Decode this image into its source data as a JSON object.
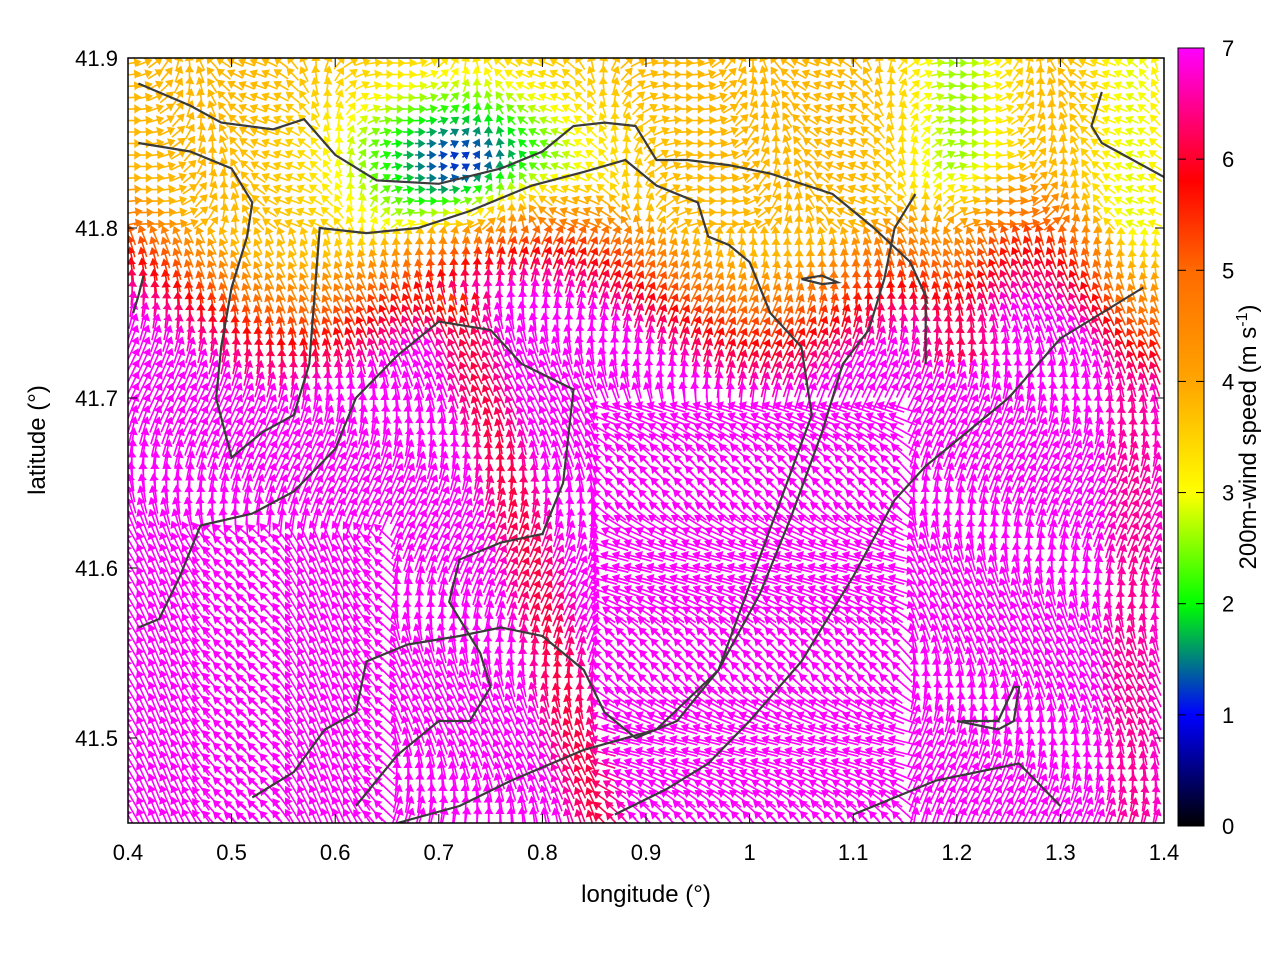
{
  "chart_data": {
    "type": "vector-field",
    "xlabel": "longitude (°)",
    "ylabel": "latitude (°)",
    "xlim": [
      0.4,
      1.4
    ],
    "ylim": [
      41.45,
      41.9
    ],
    "xticks": [
      "0.4",
      "0.5",
      "0.6",
      "0.7",
      "0.8",
      "0.9",
      "1",
      "1.1",
      "1.2",
      "1.3",
      "1.4"
    ],
    "yticks": [
      "41.5",
      "41.6",
      "41.7",
      "41.8",
      "41.9"
    ],
    "colorbar": {
      "label_main": "200m-wind speed (m s",
      "label_sup": "-1",
      "label_end": ")",
      "range": [
        0,
        7
      ],
      "ticks": [
        "0",
        "1",
        "2",
        "3",
        "4",
        "5",
        "6",
        "7"
      ],
      "palette": [
        {
          "v": 0.0,
          "color": "#000000"
        },
        {
          "v": 1.0,
          "color": "#0000ff"
        },
        {
          "v": 2.0,
          "color": "#00ff00"
        },
        {
          "v": 3.0,
          "color": "#ffff00"
        },
        {
          "v": 4.0,
          "color": "#ffa500"
        },
        {
          "v": 5.0,
          "color": "#ff6a00"
        },
        {
          "v": 5.8,
          "color": "#ff0000"
        },
        {
          "v": 7.0,
          "color": "#ff00ff"
        }
      ]
    },
    "grid": false,
    "contours": [
      [
        [
          0.41,
          41.885
        ],
        [
          0.46,
          41.872
        ],
        [
          0.49,
          41.862
        ],
        [
          0.54,
          41.858
        ],
        [
          0.57,
          41.864
        ],
        [
          0.6,
          41.843
        ],
        [
          0.64,
          41.828
        ],
        [
          0.7,
          41.826
        ],
        [
          0.76,
          41.835
        ],
        [
          0.8,
          41.845
        ],
        [
          0.83,
          41.86
        ],
        [
          0.86,
          41.862
        ],
        [
          0.89,
          41.86
        ],
        [
          0.91,
          41.84
        ],
        [
          0.94,
          41.84
        ],
        [
          0.98,
          41.837
        ],
        [
          1.02,
          41.832
        ],
        [
          1.08,
          41.82
        ],
        [
          1.12,
          41.8
        ],
        [
          1.155,
          41.78
        ],
        [
          1.17,
          41.76
        ],
        [
          1.17,
          41.72
        ]
      ],
      [
        [
          0.41,
          41.85
        ],
        [
          0.46,
          41.845
        ],
        [
          0.5,
          41.835
        ],
        [
          0.52,
          41.815
        ],
        [
          0.515,
          41.795
        ],
        [
          0.5,
          41.765
        ],
        [
          0.49,
          41.73
        ],
        [
          0.485,
          41.7
        ],
        [
          0.5,
          41.665
        ],
        [
          0.53,
          41.68
        ],
        [
          0.56,
          41.69
        ],
        [
          0.575,
          41.72
        ],
        [
          0.58,
          41.76
        ],
        [
          0.585,
          41.8
        ],
        [
          0.63,
          41.797
        ],
        [
          0.68,
          41.8
        ],
        [
          0.73,
          41.81
        ],
        [
          0.79,
          41.825
        ],
        [
          0.84,
          41.833
        ],
        [
          0.88,
          41.84
        ],
        [
          0.91,
          41.825
        ],
        [
          0.95,
          41.815
        ],
        [
          0.96,
          41.795
        ],
        [
          0.98,
          41.79
        ],
        [
          1.0,
          41.78
        ],
        [
          1.02,
          41.75
        ],
        [
          1.05,
          41.73
        ],
        [
          1.06,
          41.69
        ],
        [
          1.03,
          41.64
        ],
        [
          1.0,
          41.59
        ],
        [
          0.97,
          41.54
        ],
        [
          0.91,
          41.505
        ],
        [
          0.84,
          41.493
        ],
        [
          0.77,
          41.475
        ],
        [
          0.72,
          41.46
        ],
        [
          0.66,
          41.45
        ]
      ],
      [
        [
          0.41,
          41.565
        ],
        [
          0.43,
          41.57
        ],
        [
          0.45,
          41.595
        ],
        [
          0.47,
          41.625
        ],
        [
          0.52,
          41.632
        ],
        [
          0.56,
          41.645
        ],
        [
          0.6,
          41.67
        ],
        [
          0.62,
          41.7
        ],
        [
          0.66,
          41.725
        ],
        [
          0.7,
          41.745
        ],
        [
          0.75,
          41.74
        ],
        [
          0.78,
          41.72
        ],
        [
          0.83,
          41.705
        ],
        [
          0.82,
          41.65
        ],
        [
          0.8,
          41.62
        ],
        [
          0.76,
          41.615
        ],
        [
          0.72,
          41.605
        ],
        [
          0.71,
          41.58
        ],
        [
          0.74,
          41.55
        ],
        [
          0.75,
          41.53
        ],
        [
          0.73,
          41.51
        ],
        [
          0.7,
          41.51
        ],
        [
          0.66,
          41.49
        ],
        [
          0.64,
          41.475
        ],
        [
          0.62,
          41.46
        ]
      ],
      [
        [
          0.52,
          41.465
        ],
        [
          0.56,
          41.48
        ],
        [
          0.59,
          41.505
        ],
        [
          0.62,
          41.515
        ],
        [
          0.63,
          41.545
        ],
        [
          0.67,
          41.555
        ],
        [
          0.72,
          41.56
        ],
        [
          0.76,
          41.565
        ],
        [
          0.8,
          41.56
        ],
        [
          0.84,
          41.54
        ],
        [
          0.86,
          41.515
        ],
        [
          0.89,
          41.5
        ],
        [
          0.93,
          41.51
        ],
        [
          0.97,
          41.54
        ],
        [
          1.01,
          41.585
        ],
        [
          1.04,
          41.63
        ],
        [
          1.07,
          41.68
        ],
        [
          1.09,
          41.72
        ],
        [
          1.115,
          41.74
        ],
        [
          1.13,
          41.77
        ],
        [
          1.14,
          41.8
        ],
        [
          1.16,
          41.82
        ]
      ],
      [
        [
          0.87,
          41.455
        ],
        [
          0.92,
          41.47
        ],
        [
          0.96,
          41.485
        ],
        [
          1.0,
          41.51
        ],
        [
          1.05,
          41.545
        ],
        [
          1.1,
          41.595
        ],
        [
          1.14,
          41.64
        ],
        [
          1.17,
          41.66
        ],
        [
          1.21,
          41.68
        ],
        [
          1.25,
          41.7
        ],
        [
          1.3,
          41.735
        ],
        [
          1.34,
          41.75
        ],
        [
          1.38,
          41.765
        ]
      ],
      [
        [
          1.1,
          41.455
        ],
        [
          1.14,
          41.465
        ],
        [
          1.18,
          41.475
        ],
        [
          1.22,
          41.48
        ],
        [
          1.26,
          41.485
        ],
        [
          1.3,
          41.46
        ]
      ],
      [
        [
          1.2,
          41.51
        ],
        [
          1.24,
          41.505
        ],
        [
          1.255,
          41.51
        ],
        [
          1.26,
          41.53
        ],
        [
          1.255,
          41.53
        ],
        [
          1.24,
          41.51
        ],
        [
          1.205,
          41.51
        ]
      ],
      [
        [
          1.34,
          41.88
        ],
        [
          1.33,
          41.86
        ],
        [
          1.34,
          41.85
        ],
        [
          1.37,
          41.84
        ],
        [
          1.4,
          41.83
        ]
      ],
      [
        [
          0.415,
          41.772
        ],
        [
          0.41,
          41.76
        ],
        [
          0.405,
          41.75
        ]
      ],
      [
        [
          1.05,
          41.77
        ],
        [
          1.07,
          41.767
        ],
        [
          1.085,
          41.768
        ],
        [
          1.07,
          41.772
        ],
        [
          1.05,
          41.77
        ]
      ]
    ]
  }
}
